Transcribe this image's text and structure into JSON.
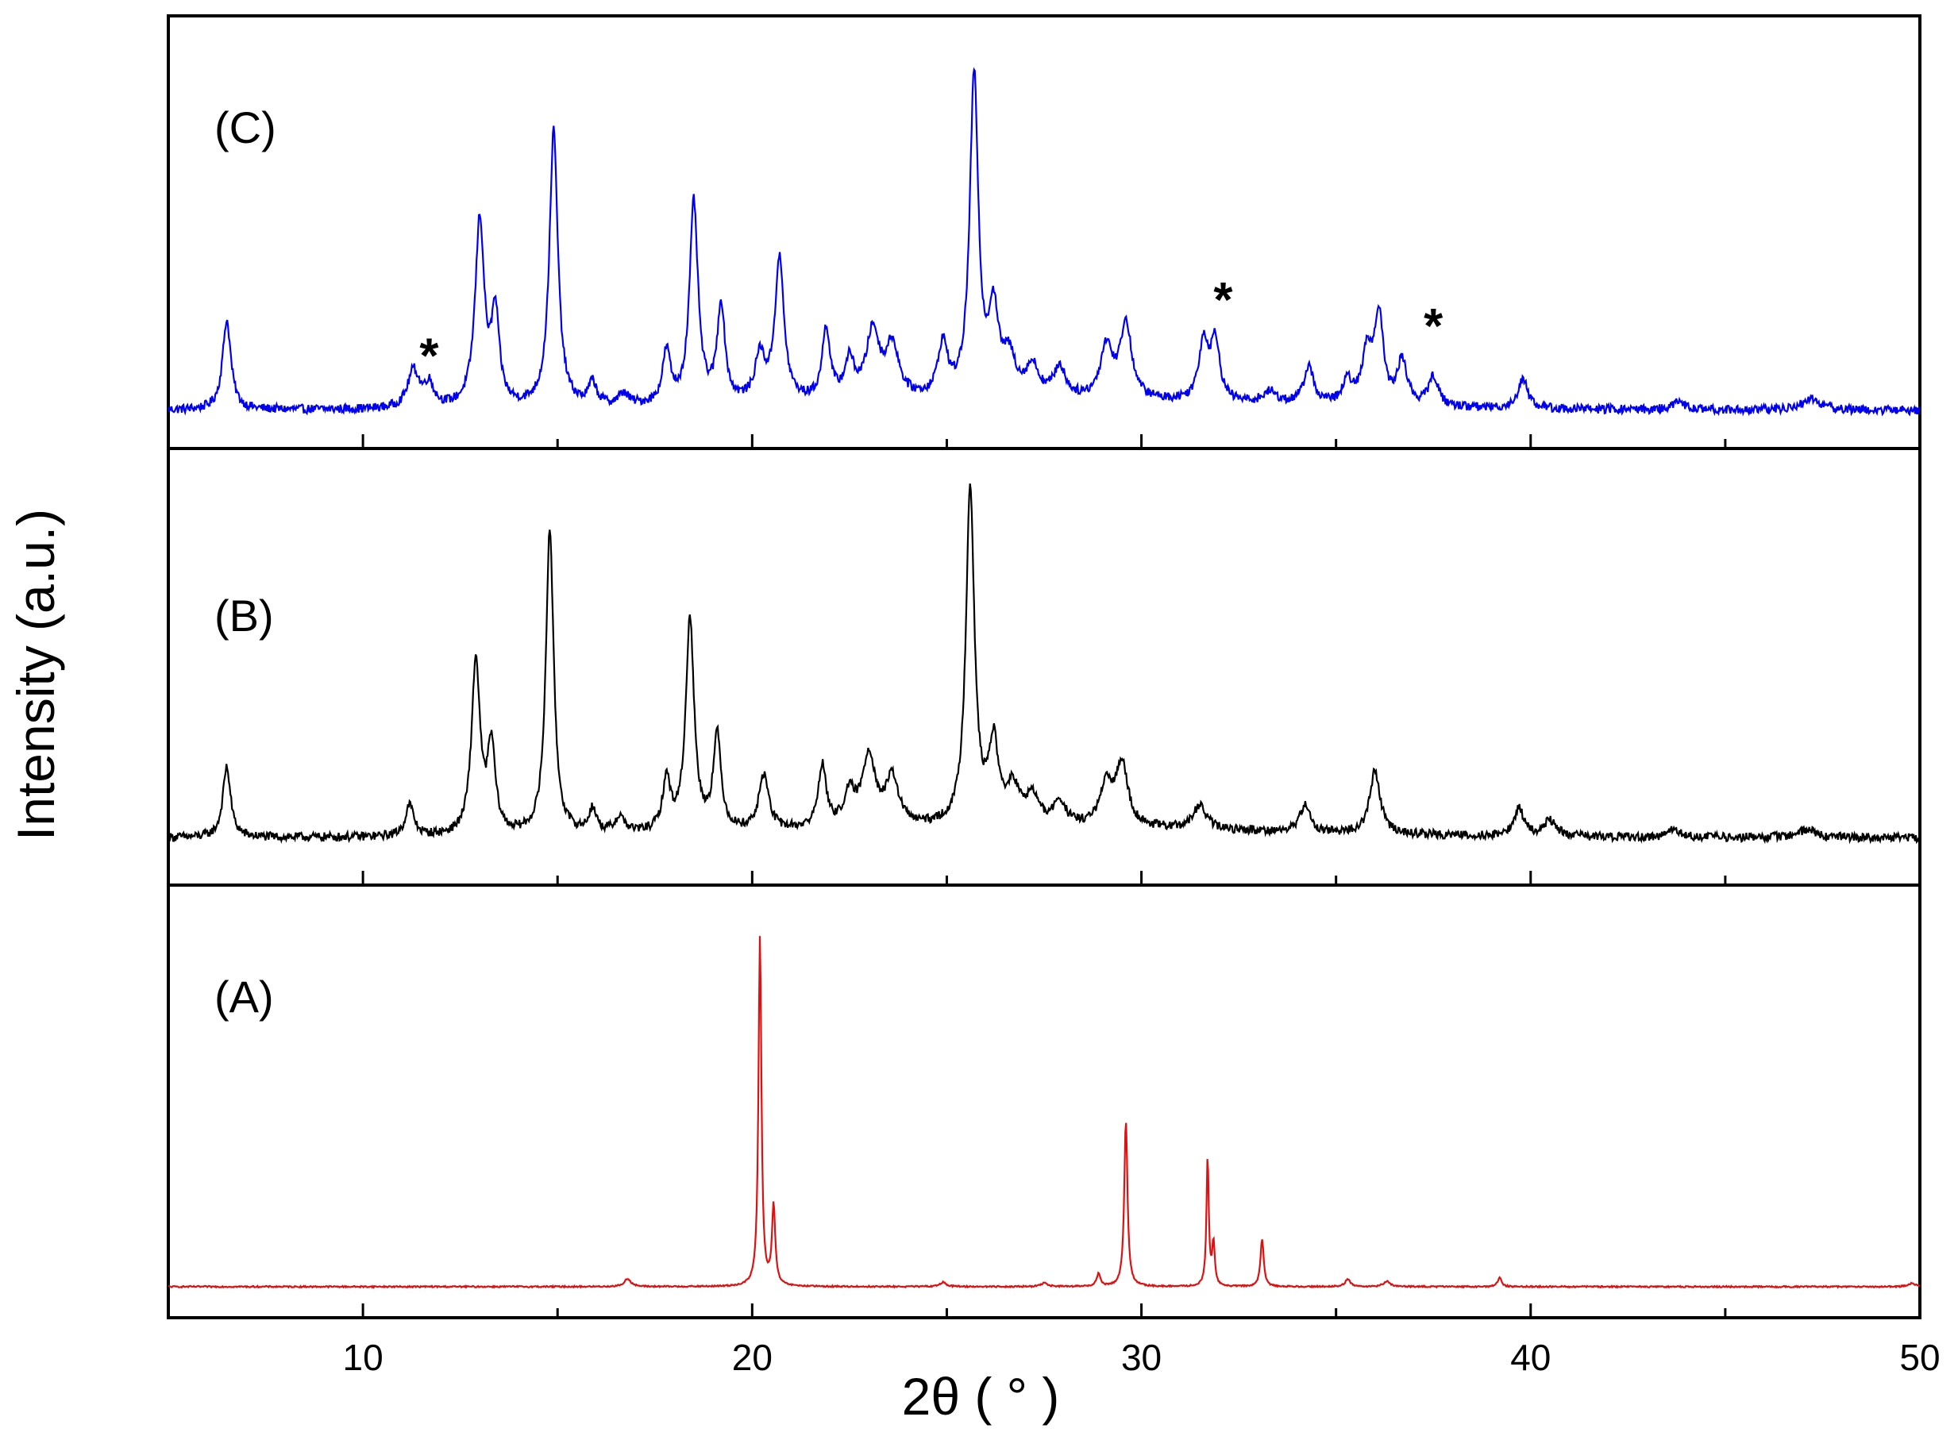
{
  "chart_data": {
    "type": "line",
    "xlabel": "2θ ( ° )",
    "ylabel": "Intensity (a.u.)",
    "xlim": [
      5,
      50
    ],
    "xticks_major": [
      10,
      20,
      30,
      40,
      50
    ],
    "xticks_minor": [
      15,
      25,
      35,
      45
    ],
    "grid": false,
    "legend": "none",
    "panels": [
      {
        "label": "(C)",
        "color": "#0000ee",
        "ylim": [
          0,
          1
        ],
        "baseline": 0.06,
        "noise": 0.012,
        "markers": [
          {
            "text": "*",
            "x": 11.7,
            "y": 0.22
          },
          {
            "text": "*",
            "x": 32.1,
            "y": 0.37
          },
          {
            "text": "*",
            "x": 37.5,
            "y": 0.3
          }
        ],
        "peaks": [
          {
            "x": 6.5,
            "h": 0.24,
            "w": 0.13
          },
          {
            "x": 11.3,
            "h": 0.1,
            "w": 0.18
          },
          {
            "x": 11.7,
            "h": 0.06,
            "w": 0.15
          },
          {
            "x": 13.0,
            "h": 0.5,
            "w": 0.14
          },
          {
            "x": 13.4,
            "h": 0.24,
            "w": 0.12
          },
          {
            "x": 14.9,
            "h": 0.74,
            "w": 0.13
          },
          {
            "x": 15.9,
            "h": 0.06,
            "w": 0.12
          },
          {
            "x": 16.7,
            "h": 0.03,
            "w": 0.15
          },
          {
            "x": 17.8,
            "h": 0.14,
            "w": 0.12
          },
          {
            "x": 18.5,
            "h": 0.54,
            "w": 0.13
          },
          {
            "x": 19.2,
            "h": 0.26,
            "w": 0.12
          },
          {
            "x": 20.2,
            "h": 0.12,
            "w": 0.15
          },
          {
            "x": 20.7,
            "h": 0.38,
            "w": 0.14
          },
          {
            "x": 21.9,
            "h": 0.19,
            "w": 0.12
          },
          {
            "x": 22.5,
            "h": 0.1,
            "w": 0.15
          },
          {
            "x": 23.1,
            "h": 0.18,
            "w": 0.2
          },
          {
            "x": 23.6,
            "h": 0.14,
            "w": 0.2
          },
          {
            "x": 24.9,
            "h": 0.14,
            "w": 0.15
          },
          {
            "x": 25.7,
            "h": 0.86,
            "w": 0.13
          },
          {
            "x": 26.2,
            "h": 0.22,
            "w": 0.15
          },
          {
            "x": 26.6,
            "h": 0.1,
            "w": 0.2
          },
          {
            "x": 27.2,
            "h": 0.08,
            "w": 0.2
          },
          {
            "x": 27.9,
            "h": 0.08,
            "w": 0.18
          },
          {
            "x": 29.1,
            "h": 0.14,
            "w": 0.18
          },
          {
            "x": 29.6,
            "h": 0.2,
            "w": 0.18
          },
          {
            "x": 31.6,
            "h": 0.16,
            "w": 0.15
          },
          {
            "x": 31.9,
            "h": 0.16,
            "w": 0.13
          },
          {
            "x": 33.3,
            "h": 0.03,
            "w": 0.2
          },
          {
            "x": 34.3,
            "h": 0.1,
            "w": 0.15
          },
          {
            "x": 35.3,
            "h": 0.06,
            "w": 0.15
          },
          {
            "x": 35.8,
            "h": 0.14,
            "w": 0.15
          },
          {
            "x": 36.1,
            "h": 0.24,
            "w": 0.13
          },
          {
            "x": 36.7,
            "h": 0.12,
            "w": 0.15
          },
          {
            "x": 37.5,
            "h": 0.08,
            "w": 0.15
          },
          {
            "x": 39.8,
            "h": 0.08,
            "w": 0.15
          },
          {
            "x": 43.8,
            "h": 0.02,
            "w": 0.2
          },
          {
            "x": 47.2,
            "h": 0.03,
            "w": 0.3
          }
        ]
      },
      {
        "label": "(B)",
        "color": "#000000",
        "ylim": [
          0,
          1
        ],
        "baseline": 0.08,
        "noise": 0.011,
        "markers": [],
        "peaks": [
          {
            "x": 6.5,
            "h": 0.18,
            "w": 0.12
          },
          {
            "x": 11.2,
            "h": 0.08,
            "w": 0.13
          },
          {
            "x": 12.9,
            "h": 0.44,
            "w": 0.13
          },
          {
            "x": 13.3,
            "h": 0.22,
            "w": 0.12
          },
          {
            "x": 14.8,
            "h": 0.78,
            "w": 0.12
          },
          {
            "x": 15.9,
            "h": 0.06,
            "w": 0.12
          },
          {
            "x": 16.6,
            "h": 0.04,
            "w": 0.15
          },
          {
            "x": 17.8,
            "h": 0.13,
            "w": 0.12
          },
          {
            "x": 18.4,
            "h": 0.54,
            "w": 0.13
          },
          {
            "x": 19.1,
            "h": 0.24,
            "w": 0.12
          },
          {
            "x": 20.3,
            "h": 0.14,
            "w": 0.15
          },
          {
            "x": 21.8,
            "h": 0.16,
            "w": 0.12
          },
          {
            "x": 22.5,
            "h": 0.08,
            "w": 0.18
          },
          {
            "x": 23.0,
            "h": 0.18,
            "w": 0.2
          },
          {
            "x": 23.6,
            "h": 0.12,
            "w": 0.2
          },
          {
            "x": 25.6,
            "h": 0.86,
            "w": 0.13
          },
          {
            "x": 26.2,
            "h": 0.2,
            "w": 0.15
          },
          {
            "x": 26.7,
            "h": 0.09,
            "w": 0.2
          },
          {
            "x": 27.2,
            "h": 0.07,
            "w": 0.2
          },
          {
            "x": 27.9,
            "h": 0.06,
            "w": 0.18
          },
          {
            "x": 29.1,
            "h": 0.1,
            "w": 0.2
          },
          {
            "x": 29.5,
            "h": 0.16,
            "w": 0.18
          },
          {
            "x": 31.5,
            "h": 0.06,
            "w": 0.2
          },
          {
            "x": 34.2,
            "h": 0.07,
            "w": 0.15
          },
          {
            "x": 36.0,
            "h": 0.16,
            "w": 0.16
          },
          {
            "x": 39.7,
            "h": 0.07,
            "w": 0.15
          },
          {
            "x": 40.5,
            "h": 0.04,
            "w": 0.2
          },
          {
            "x": 43.7,
            "h": 0.02,
            "w": 0.2
          },
          {
            "x": 47.1,
            "h": 0.02,
            "w": 0.3
          }
        ]
      },
      {
        "label": "(A)",
        "color": "#dd1111",
        "ylim": [
          0,
          1
        ],
        "baseline": 0.02,
        "noise": 0.002,
        "markers": [],
        "peaks": [
          {
            "x": 16.8,
            "h": 0.022,
            "w": 0.1
          },
          {
            "x": 20.2,
            "h": 0.97,
            "w": 0.045
          },
          {
            "x": 20.55,
            "h": 0.22,
            "w": 0.05
          },
          {
            "x": 24.9,
            "h": 0.012,
            "w": 0.1
          },
          {
            "x": 27.5,
            "h": 0.01,
            "w": 0.1
          },
          {
            "x": 28.9,
            "h": 0.035,
            "w": 0.06
          },
          {
            "x": 29.6,
            "h": 0.46,
            "w": 0.05
          },
          {
            "x": 31.7,
            "h": 0.36,
            "w": 0.035
          },
          {
            "x": 31.85,
            "h": 0.12,
            "w": 0.04
          },
          {
            "x": 33.1,
            "h": 0.13,
            "w": 0.05
          },
          {
            "x": 35.3,
            "h": 0.02,
            "w": 0.08
          },
          {
            "x": 36.3,
            "h": 0.015,
            "w": 0.1
          },
          {
            "x": 39.2,
            "h": 0.025,
            "w": 0.06
          },
          {
            "x": 49.8,
            "h": 0.01,
            "w": 0.1
          }
        ]
      }
    ]
  }
}
